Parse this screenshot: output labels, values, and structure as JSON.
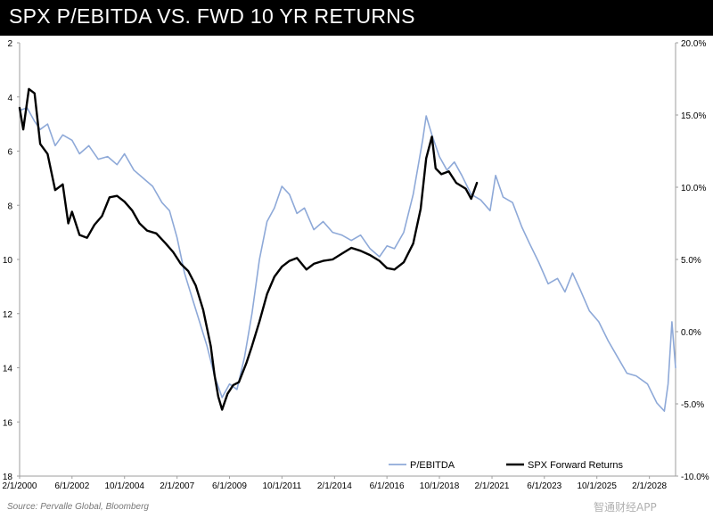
{
  "header": {
    "title": "SPX P/EBITDA VS. FWD 10 YR RETURNS"
  },
  "footer": {
    "source": "Source: Pervalle Global, Bloomberg",
    "watermark": "智通财经APP"
  },
  "colors": {
    "pebitda_line": "#8ea9d8",
    "returns_line": "#000000",
    "axis": "#9e9e9e",
    "title_bar": "#000000"
  },
  "chart_data": {
    "type": "line",
    "title": "SPX P/EBITDA VS. FWD 10 YR RETURNS",
    "x_type": "date",
    "x_range": [
      "2000-02-01",
      "2029-04-01"
    ],
    "x_tick_labels": [
      "2/1/2000",
      "6/1/2002",
      "10/1/2004",
      "2/1/2007",
      "6/1/2009",
      "10/1/2011",
      "2/1/2014",
      "6/1/2016",
      "10/1/2018",
      "2/1/2021",
      "6/1/2023",
      "10/1/2025",
      "2/1/2028"
    ],
    "y_left": {
      "reversed": true,
      "range": [
        2,
        18
      ],
      "ticks": [
        2,
        4,
        6,
        8,
        10,
        12,
        14,
        16,
        18
      ],
      "tick_labels": [
        "2",
        "4",
        "6",
        "8",
        "10",
        "12",
        "14",
        "16",
        "18"
      ]
    },
    "y_right": {
      "range": [
        -10,
        20
      ],
      "ticks": [
        -10,
        -5,
        0,
        5,
        10,
        15,
        20
      ],
      "tick_labels": [
        "-10.0%",
        "-5.0%",
        "0.0%",
        "5.0%",
        "10.0%",
        "15.0%",
        "20.0%"
      ]
    },
    "legend_position": "bottom-right",
    "grid": false,
    "series": [
      {
        "name": "P/EBITDA",
        "axis": "left",
        "color": "#8ea9d8",
        "points": [
          [
            "2000-02-01",
            4.5
          ],
          [
            "2000-06-01",
            4.4
          ],
          [
            "2000-10-01",
            4.9
          ],
          [
            "2001-01-01",
            5.2
          ],
          [
            "2001-05-01",
            5.0
          ],
          [
            "2001-09-01",
            5.8
          ],
          [
            "2002-01-01",
            5.4
          ],
          [
            "2002-06-01",
            5.6
          ],
          [
            "2002-10-01",
            6.1
          ],
          [
            "2003-03-01",
            5.8
          ],
          [
            "2003-08-01",
            6.3
          ],
          [
            "2004-01-01",
            6.2
          ],
          [
            "2004-06-01",
            6.5
          ],
          [
            "2004-10-01",
            6.1
          ],
          [
            "2005-03-01",
            6.7
          ],
          [
            "2005-08-01",
            7.0
          ],
          [
            "2006-01-01",
            7.3
          ],
          [
            "2006-06-01",
            7.9
          ],
          [
            "2006-10-01",
            8.2
          ],
          [
            "2007-02-01",
            9.2
          ],
          [
            "2007-06-01",
            10.5
          ],
          [
            "2007-10-01",
            11.4
          ],
          [
            "2008-02-01",
            12.3
          ],
          [
            "2008-06-01",
            13.2
          ],
          [
            "2008-10-01",
            14.3
          ],
          [
            "2009-02-01",
            15.1
          ],
          [
            "2009-06-01",
            14.6
          ],
          [
            "2009-10-01",
            14.8
          ],
          [
            "2010-02-01",
            13.6
          ],
          [
            "2010-06-01",
            12.0
          ],
          [
            "2010-10-01",
            10.0
          ],
          [
            "2011-02-01",
            8.6
          ],
          [
            "2011-06-01",
            8.1
          ],
          [
            "2011-10-01",
            7.3
          ],
          [
            "2012-02-01",
            7.6
          ],
          [
            "2012-06-01",
            8.3
          ],
          [
            "2012-10-01",
            8.1
          ],
          [
            "2013-03-01",
            8.9
          ],
          [
            "2013-08-01",
            8.6
          ],
          [
            "2014-01-01",
            9.0
          ],
          [
            "2014-06-01",
            9.1
          ],
          [
            "2014-11-01",
            9.3
          ],
          [
            "2015-04-01",
            9.1
          ],
          [
            "2015-09-01",
            9.6
          ],
          [
            "2016-02-01",
            9.9
          ],
          [
            "2016-06-01",
            9.5
          ],
          [
            "2016-10-01",
            9.6
          ],
          [
            "2017-03-01",
            9.0
          ],
          [
            "2017-08-01",
            7.6
          ],
          [
            "2018-01-01",
            5.6
          ],
          [
            "2018-03-01",
            4.7
          ],
          [
            "2018-06-01",
            5.4
          ],
          [
            "2018-10-01",
            6.2
          ],
          [
            "2019-02-01",
            6.7
          ],
          [
            "2019-06-01",
            6.4
          ],
          [
            "2019-10-01",
            6.9
          ],
          [
            "2020-03-01",
            7.6
          ],
          [
            "2020-08-01",
            7.8
          ],
          [
            "2021-01-01",
            8.2
          ],
          [
            "2021-04-01",
            6.9
          ],
          [
            "2021-08-01",
            7.7
          ],
          [
            "2022-01-01",
            7.9
          ],
          [
            "2022-06-01",
            8.8
          ],
          [
            "2022-10-01",
            9.4
          ],
          [
            "2023-03-01",
            10.1
          ],
          [
            "2023-08-01",
            10.9
          ],
          [
            "2024-01-01",
            10.7
          ],
          [
            "2024-05-01",
            11.2
          ],
          [
            "2024-09-01",
            10.5
          ],
          [
            "2025-01-01",
            11.1
          ],
          [
            "2025-06-01",
            11.9
          ],
          [
            "2025-11-01",
            12.3
          ],
          [
            "2026-04-01",
            13.0
          ],
          [
            "2026-09-01",
            13.6
          ],
          [
            "2027-02-01",
            14.2
          ],
          [
            "2027-07-01",
            14.3
          ],
          [
            "2028-01-01",
            14.6
          ],
          [
            "2028-06-01",
            15.3
          ],
          [
            "2028-10-01",
            15.6
          ],
          [
            "2028-12-01",
            14.6
          ],
          [
            "2029-02-01",
            12.3
          ],
          [
            "2029-04-01",
            14.0
          ]
        ]
      },
      {
        "name": "SPX Forward Returns",
        "axis": "right",
        "color": "#000000",
        "points": [
          [
            "2000-02-01",
            15.5
          ],
          [
            "2000-04-01",
            14.0
          ],
          [
            "2000-07-01",
            16.8
          ],
          [
            "2000-10-01",
            16.5
          ],
          [
            "2001-01-01",
            13.0
          ],
          [
            "2001-05-01",
            12.3
          ],
          [
            "2001-09-01",
            9.8
          ],
          [
            "2002-01-01",
            10.2
          ],
          [
            "2002-04-01",
            7.5
          ],
          [
            "2002-06-01",
            8.3
          ],
          [
            "2002-10-01",
            6.7
          ],
          [
            "2003-02-01",
            6.5
          ],
          [
            "2003-06-01",
            7.4
          ],
          [
            "2003-10-01",
            8.0
          ],
          [
            "2004-02-01",
            9.3
          ],
          [
            "2004-06-01",
            9.4
          ],
          [
            "2004-10-01",
            9.0
          ],
          [
            "2005-02-01",
            8.4
          ],
          [
            "2005-06-01",
            7.5
          ],
          [
            "2005-10-01",
            7.0
          ],
          [
            "2006-03-01",
            6.8
          ],
          [
            "2006-08-01",
            6.1
          ],
          [
            "2006-12-01",
            5.5
          ],
          [
            "2007-04-01",
            4.7
          ],
          [
            "2007-08-01",
            4.2
          ],
          [
            "2007-12-01",
            3.2
          ],
          [
            "2008-04-01",
            1.5
          ],
          [
            "2008-08-01",
            -1.0
          ],
          [
            "2008-10-01",
            -3.0
          ],
          [
            "2008-12-01",
            -4.5
          ],
          [
            "2009-02-01",
            -5.4
          ],
          [
            "2009-05-01",
            -4.3
          ],
          [
            "2009-08-01",
            -3.7
          ],
          [
            "2009-11-01",
            -3.5
          ],
          [
            "2010-03-01",
            -2.2
          ],
          [
            "2010-06-01",
            -1.0
          ],
          [
            "2010-10-01",
            0.7
          ],
          [
            "2011-02-01",
            2.6
          ],
          [
            "2011-06-01",
            3.8
          ],
          [
            "2011-10-01",
            4.5
          ],
          [
            "2012-02-01",
            4.9
          ],
          [
            "2012-06-01",
            5.1
          ],
          [
            "2012-11-01",
            4.3
          ],
          [
            "2013-03-01",
            4.7
          ],
          [
            "2013-08-01",
            4.9
          ],
          [
            "2014-01-01",
            5.0
          ],
          [
            "2014-06-01",
            5.4
          ],
          [
            "2014-11-01",
            5.8
          ],
          [
            "2015-04-01",
            5.6
          ],
          [
            "2015-09-01",
            5.3
          ],
          [
            "2016-02-01",
            4.9
          ],
          [
            "2016-06-01",
            4.4
          ],
          [
            "2016-10-01",
            4.3
          ],
          [
            "2017-03-01",
            4.8
          ],
          [
            "2017-08-01",
            6.1
          ],
          [
            "2017-12-01",
            8.5
          ],
          [
            "2018-03-01",
            12.0
          ],
          [
            "2018-06-01",
            13.5
          ],
          [
            "2018-08-01",
            11.3
          ],
          [
            "2018-11-01",
            10.9
          ],
          [
            "2019-03-01",
            11.1
          ],
          [
            "2019-07-01",
            10.3
          ],
          [
            "2019-12-01",
            9.9
          ],
          [
            "2020-03-01",
            9.2
          ],
          [
            "2020-06-01",
            10.3
          ]
        ]
      }
    ]
  },
  "legend": {
    "items": [
      {
        "label": "P/EBITDA",
        "color": "#8ea9d8"
      },
      {
        "label": "SPX Forward Returns",
        "color": "#000000"
      }
    ]
  }
}
